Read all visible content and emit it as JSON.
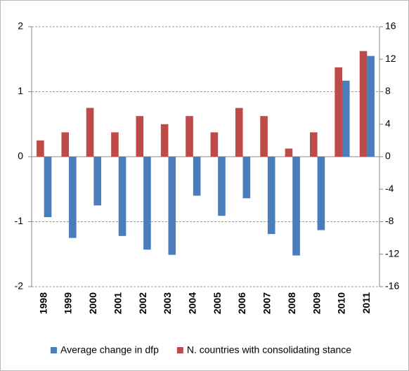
{
  "chart_data": {
    "type": "bar",
    "categories": [
      "1998",
      "1999",
      "2000",
      "2001",
      "2002",
      "2003",
      "2004",
      "2005",
      "2006",
      "2007",
      "2008",
      "2009",
      "2010",
      "2011"
    ],
    "series": [
      {
        "name": "Average change in dfp",
        "color": "#4a7ebb",
        "values": [
          -0.93,
          -1.25,
          -0.75,
          -1.22,
          -1.43,
          -1.51,
          -0.6,
          -0.91,
          -0.64,
          -1.19,
          -1.52,
          -1.13,
          1.17,
          1.55
        ]
      },
      {
        "name": "N. countries with consolidating stance",
        "color": "#be4b48",
        "axis": "y2",
        "values": [
          2,
          3,
          6,
          3,
          5,
          4,
          5,
          3,
          6,
          5,
          1,
          3,
          11,
          13
        ]
      }
    ],
    "ylim": [
      -2,
      2
    ],
    "yticks": [
      -2,
      -1,
      0,
      1,
      2
    ],
    "y2lim": [
      -16,
      16
    ],
    "y2ticks": [
      -16,
      -12,
      -8,
      -4,
      0,
      4,
      8,
      12,
      16
    ],
    "grid": true,
    "legend": "bottom"
  }
}
